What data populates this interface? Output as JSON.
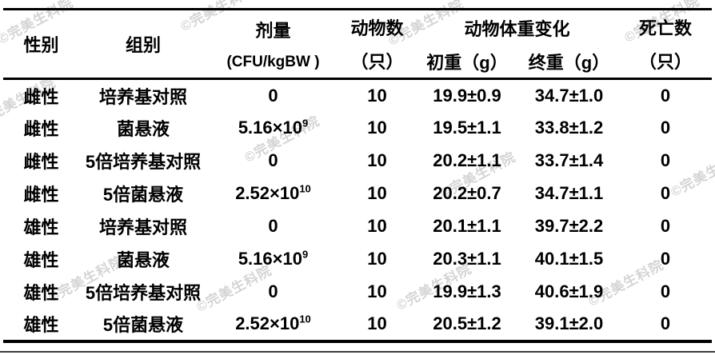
{
  "watermark": {
    "text": "©完美生科院"
  },
  "table": {
    "headers": {
      "sex": "性别",
      "group": "组别",
      "dose_line1": "剂量",
      "dose_line2": "(CFU/kgBW )",
      "animals_line1": "动物数",
      "animals_line2": "（只）",
      "weight_change": "动物体重变化",
      "initial_weight": "初重（g）",
      "final_weight": "终重（g）",
      "deaths_line1": "死亡数",
      "deaths_line2": "（只）"
    },
    "rows": [
      {
        "sex": "雌性",
        "group": "培养基对照",
        "dose_base": "0",
        "dose_exp": "",
        "animals": "10",
        "initial": "19.9±0.9",
        "final": "34.7±1.0",
        "deaths": "0"
      },
      {
        "sex": "雌性",
        "group": "菌悬液",
        "dose_base": "5.16×10",
        "dose_exp": "9",
        "animals": "10",
        "initial": "19.5±1.1",
        "final": "33.8±1.2",
        "deaths": "0"
      },
      {
        "sex": "雌性",
        "group": "5倍培养基对照",
        "dose_base": "0",
        "dose_exp": "",
        "animals": "10",
        "initial": "20.2±1.1",
        "final": "33.7±1.4",
        "deaths": "0"
      },
      {
        "sex": "雌性",
        "group": "5倍菌悬液",
        "dose_base": "2.52×10",
        "dose_exp": "10",
        "animals": "10",
        "initial": "20.2±0.7",
        "final": "34.7±1.1",
        "deaths": "0"
      },
      {
        "sex": "雄性",
        "group": "培养基对照",
        "dose_base": "0",
        "dose_exp": "",
        "animals": "10",
        "initial": "20.1±1.1",
        "final": "39.7±2.2",
        "deaths": "0"
      },
      {
        "sex": "雄性",
        "group": "菌悬液",
        "dose_base": "5.16×10",
        "dose_exp": "9",
        "animals": "10",
        "initial": "20.3±1.1",
        "final": "40.1±1.5",
        "deaths": "0"
      },
      {
        "sex": "雄性",
        "group": "5倍培养基对照",
        "dose_base": "0",
        "dose_exp": "",
        "animals": "10",
        "initial": "19.9±1.3",
        "final": "40.6±1.9",
        "deaths": "0"
      },
      {
        "sex": "雄性",
        "group": "5倍菌悬液",
        "dose_base": "2.52×10",
        "dose_exp": "10",
        "animals": "10",
        "initial": "20.5±1.2",
        "final": "39.1±2.0",
        "deaths": "0"
      }
    ]
  }
}
